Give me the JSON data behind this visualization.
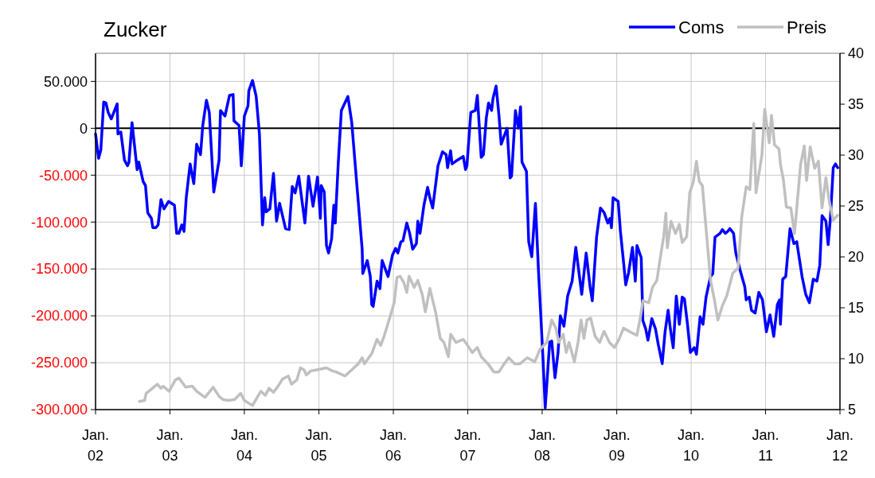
{
  "chart_data": {
    "type": "line",
    "title": "Zucker",
    "xlim": [
      "2002-01-01",
      "2012-01-01"
    ],
    "xticks": [
      {
        "value": "2002-01-01",
        "label": "Jan.\n02"
      },
      {
        "value": "2003-01-01",
        "label": "Jan.\n03"
      },
      {
        "value": "2004-01-01",
        "label": "Jan.\n04"
      },
      {
        "value": "2005-01-01",
        "label": "Jan.\n05"
      },
      {
        "value": "2006-01-01",
        "label": "Jan.\n06"
      },
      {
        "value": "2007-01-01",
        "label": "Jan.\n07"
      },
      {
        "value": "2008-01-01",
        "label": "Jan.\n08"
      },
      {
        "value": "2009-01-01",
        "label": "Jan.\n09"
      },
      {
        "value": "2010-01-01",
        "label": "Jan.\n10"
      },
      {
        "value": "2011-01-01",
        "label": "Jan.\n11"
      },
      {
        "value": "2012-01-01",
        "label": "Jan.\n12"
      }
    ],
    "ylim": [
      -300000,
      80000
    ],
    "yticks": [
      {
        "value": -300000,
        "label": "-300.000"
      },
      {
        "value": -250000,
        "label": "-250.000"
      },
      {
        "value": -200000,
        "label": "-200.000"
      },
      {
        "value": -150000,
        "label": "-150.000"
      },
      {
        "value": -100000,
        "label": "-100.000"
      },
      {
        "value": -50000,
        "label": "-50.000"
      },
      0,
      {
        "value": 50000,
        "label": "50.000"
      }
    ],
    "y2lim": [
      5,
      40
    ],
    "y2ticks": [
      5,
      10,
      15,
      20,
      25,
      30,
      35,
      40
    ],
    "grid": true,
    "legend": "top right",
    "ref_lines": [
      {
        "axis": "y",
        "value": 0,
        "color": "#000000"
      }
    ],
    "series": [
      {
        "name": "Coms",
        "color": "#0000ff",
        "x": [
          "2002-01-01",
          "2002-01-16",
          "2002-01-27",
          "2002-02-10",
          "2002-02-21",
          "2002-03-04",
          "2002-03-19",
          "2002-04-17",
          "2002-04-21",
          "2002-05-05",
          "2002-05-23",
          "2002-06-07",
          "2002-06-14",
          "2002-06-29",
          "2002-07-24",
          "2002-08-01",
          "2002-08-23",
          "2002-09-03",
          "2002-09-14",
          "2002-10-02",
          "2002-10-09",
          "2002-10-24",
          "2002-11-04",
          "2002-11-18",
          "2002-12-03",
          "2002-12-25",
          "2003-01-23",
          "2003-02-03",
          "2003-02-14",
          "2003-02-28",
          "2003-03-11",
          "2003-03-22",
          "2003-04-10",
          "2003-04-28",
          "2003-05-12",
          "2003-05-31",
          "2003-06-11",
          "2003-06-29",
          "2003-07-13",
          "2003-08-04",
          "2003-08-30",
          "2003-09-06",
          "2003-09-28",
          "2003-10-20",
          "2003-11-07",
          "2003-11-11",
          "2003-12-06",
          "2003-12-17",
          "2004-01-01",
          "2004-01-19",
          "2004-01-23",
          "2004-02-10",
          "2004-02-28",
          "2004-03-15",
          "2004-03-30",
          "2004-04-10",
          "2004-04-17",
          "2004-05-05",
          "2004-05-23",
          "2004-06-07",
          "2004-06-22",
          "2004-07-21",
          "2004-08-08",
          "2004-08-23",
          "2004-09-06",
          "2004-09-24",
          "2004-10-24",
          "2004-11-11",
          "2004-12-03",
          "2004-12-25",
          "2005-01-08",
          "2005-01-12",
          "2005-01-27",
          "2005-02-07",
          "2005-02-17",
          "2005-03-04",
          "2005-03-15",
          "2005-03-22",
          "2005-04-06",
          "2005-04-21",
          "2005-05-23",
          "2005-06-11",
          "2005-08-01",
          "2005-08-04",
          "2005-08-26",
          "2005-09-10",
          "2005-09-17",
          "2005-09-24",
          "2005-10-13",
          "2005-10-27",
          "2005-11-07",
          "2005-12-06",
          "2005-12-28",
          "2006-01-12",
          "2006-01-23",
          "2006-02-07",
          "2006-02-17",
          "2006-03-08",
          "2006-03-22",
          "2006-04-06",
          "2006-04-24",
          "2006-05-01",
          "2006-05-12",
          "2006-05-31",
          "2006-06-18",
          "2006-06-29",
          "2006-07-13",
          "2006-08-08",
          "2006-08-30",
          "2006-09-17",
          "2006-09-24",
          "2006-10-09",
          "2006-10-16",
          "2006-11-04",
          "2006-12-10",
          "2006-12-21",
          "2006-12-28",
          "2007-01-16",
          "2007-02-07",
          "2007-02-17",
          "2007-03-08",
          "2007-03-19",
          "2007-04-02",
          "2007-04-13",
          "2007-04-28",
          "2007-05-05",
          "2007-05-20",
          "2007-06-03",
          "2007-06-14",
          "2007-06-29",
          "2007-07-13",
          "2007-07-28",
          "2007-08-04",
          "2007-08-23",
          "2007-09-06",
          "2007-09-17",
          "2007-09-24",
          "2007-10-16",
          "2007-10-27",
          "2007-11-11",
          "2007-11-29",
          "2007-12-14",
          "2008-01-05",
          "2008-01-16",
          "2008-02-07",
          "2008-02-17",
          "2008-03-04",
          "2008-03-19",
          "2008-03-30",
          "2008-04-17",
          "2008-05-05",
          "2008-05-27",
          "2008-06-14",
          "2008-07-13",
          "2008-08-04",
          "2008-08-23",
          "2008-09-03",
          "2008-09-24",
          "2008-10-13",
          "2008-10-31",
          "2008-11-18",
          "2008-11-29",
          "2008-12-06",
          "2008-12-14",
          "2009-01-08",
          "2009-01-19",
          "2009-02-03",
          "2009-02-14",
          "2009-02-28",
          "2009-03-19",
          "2009-04-02",
          "2009-04-10",
          "2009-05-01",
          "2009-05-09",
          "2009-05-23",
          "2009-06-03",
          "2009-06-22",
          "2009-07-10",
          "2009-07-24",
          "2009-08-12",
          "2009-08-26",
          "2009-09-10",
          "2009-09-21",
          "2009-10-05",
          "2009-10-20",
          "2009-11-04",
          "2009-11-18",
          "2009-11-29",
          "2009-12-14",
          "2009-12-28",
          "2010-01-16",
          "2010-01-27",
          "2010-02-14",
          "2010-02-28",
          "2010-03-15",
          "2010-04-06",
          "2010-04-17",
          "2010-04-28",
          "2010-05-23",
          "2010-06-03",
          "2010-06-18",
          "2010-06-29",
          "2010-07-10",
          "2010-07-28",
          "2010-08-08",
          "2010-08-30",
          "2010-09-21",
          "2010-09-28",
          "2010-10-13",
          "2010-10-24",
          "2010-11-11",
          "2010-11-29",
          "2010-12-17",
          "2011-01-05",
          "2011-01-23",
          "2011-02-10",
          "2011-02-28",
          "2011-03-11",
          "2011-03-15",
          "2011-03-26",
          "2011-04-10",
          "2011-05-01",
          "2011-05-20",
          "2011-06-03",
          "2011-06-29",
          "2011-07-17",
          "2011-08-04",
          "2011-08-23",
          "2011-09-10",
          "2011-09-24",
          "2011-10-05",
          "2011-10-24",
          "2011-11-04",
          "2011-11-15",
          "2011-11-29",
          "2011-12-10",
          "2011-12-21"
        ],
        "values": [
          -6000,
          -32000,
          -23000,
          28000,
          27000,
          17000,
          10000,
          26000,
          -6000,
          -4000,
          -34000,
          -40000,
          -36000,
          6000,
          -44000,
          -36000,
          -57000,
          -61000,
          -90000,
          -96000,
          -106000,
          -106000,
          -103000,
          -76000,
          -86000,
          -78000,
          -82000,
          -112000,
          -112000,
          -103000,
          -110000,
          -74000,
          -38000,
          -59000,
          -17000,
          -28000,
          3000,
          30000,
          17000,
          -68000,
          -34000,
          19000,
          13000,
          35000,
          36000,
          8000,
          3000,
          -40000,
          13000,
          24000,
          40000,
          51000,
          34000,
          -6000,
          -103000,
          -74000,
          -89000,
          -86000,
          -48000,
          -99000,
          -80000,
          -107000,
          -108000,
          -62000,
          -69000,
          -51000,
          -101000,
          -51000,
          -83000,
          -52000,
          -96000,
          -61000,
          -68000,
          -125000,
          -133000,
          -118000,
          -82000,
          -101000,
          -36000,
          19000,
          34000,
          6000,
          -129000,
          -155000,
          -141000,
          -158000,
          -188000,
          -190000,
          -163000,
          -171000,
          -141000,
          -158000,
          -135000,
          -128000,
          -133000,
          -121000,
          -120000,
          -101000,
          -112000,
          -129000,
          -123000,
          -99000,
          -112000,
          -82000,
          -63000,
          -74000,
          -85000,
          -40000,
          -25000,
          -28000,
          -42000,
          -24000,
          -38000,
          -35000,
          -30000,
          -44000,
          -40000,
          17000,
          19000,
          35000,
          -31000,
          -28000,
          11000,
          27000,
          19000,
          32000,
          45000,
          14000,
          -17000,
          -8000,
          0,
          -53000,
          -51000,
          19000,
          0,
          23000,
          -36000,
          -46000,
          -121000,
          -137000,
          -80000,
          -152000,
          -245000,
          -298000,
          -228000,
          -227000,
          -266000,
          -239000,
          -200000,
          -211000,
          -179000,
          -163000,
          -127000,
          -177000,
          -133000,
          -169000,
          -184000,
          -116000,
          -85000,
          -90000,
          -101000,
          -96000,
          -106000,
          -74000,
          -78000,
          -110000,
          -142000,
          -167000,
          -154000,
          -127000,
          -163000,
          -125000,
          -138000,
          -205000,
          -214000,
          -226000,
          -203000,
          -214000,
          -231000,
          -251000,
          -217000,
          -194000,
          -214000,
          -234000,
          -179000,
          -209000,
          -180000,
          -182000,
          -209000,
          -239000,
          -234000,
          -241000,
          -201000,
          -209000,
          -180000,
          -158000,
          -155000,
          -116000,
          -112000,
          -108000,
          -112000,
          -110000,
          -107000,
          -112000,
          -133000,
          -152000,
          -169000,
          -183000,
          -180000,
          -194000,
          -197000,
          -175000,
          -183000,
          -217000,
          -199000,
          -222000,
          -188000,
          -183000,
          -209000,
          -161000,
          -158000,
          -107000,
          -123000,
          -121000,
          -158000,
          -177000,
          -186000,
          -161000,
          -163000,
          -146000,
          -93000,
          -99000,
          -124000,
          -96000,
          -42000,
          -38000,
          -42000
        ]
      },
      {
        "name": "Preis",
        "color": "#c0c0c0",
        "axis": "y2",
        "x": [
          "2002-08-04",
          "2002-08-30",
          "2002-09-06",
          "2002-10-02",
          "2002-10-13",
          "2002-10-31",
          "2002-11-18",
          "2002-11-29",
          "2002-12-28",
          "2003-01-27",
          "2003-02-14",
          "2003-03-19",
          "2003-04-21",
          "2003-05-12",
          "2003-06-22",
          "2003-08-01",
          "2003-08-30",
          "2003-09-17",
          "2003-10-16",
          "2003-11-15",
          "2003-12-14",
          "2004-01-01",
          "2004-02-10",
          "2004-03-04",
          "2004-03-22",
          "2004-04-13",
          "2004-05-01",
          "2004-05-23",
          "2004-06-11",
          "2004-07-06",
          "2004-08-04",
          "2004-08-19",
          "2004-09-14",
          "2004-10-02",
          "2004-10-20",
          "2004-10-31",
          "2004-11-22",
          "2004-12-21",
          "2005-02-07",
          "2005-03-08",
          "2005-03-26",
          "2005-04-17",
          "2005-05-09",
          "2005-06-11",
          "2005-07-13",
          "2005-08-01",
          "2005-08-12",
          "2005-09-17",
          "2005-10-13",
          "2005-10-31",
          "2005-11-18",
          "2005-12-17",
          "2006-01-05",
          "2006-01-19",
          "2006-02-03",
          "2006-02-21",
          "2006-03-08",
          "2006-03-19",
          "2006-04-13",
          "2006-05-01",
          "2006-05-23",
          "2006-06-07",
          "2006-06-29",
          "2006-07-28",
          "2006-08-19",
          "2006-09-06",
          "2006-09-28",
          "2006-10-09",
          "2006-11-04",
          "2006-12-10",
          "2006-12-28",
          "2007-01-23",
          "2007-02-17",
          "2007-03-08",
          "2007-04-10",
          "2007-05-09",
          "2007-06-03",
          "2007-06-29",
          "2007-07-21",
          "2007-08-19",
          "2007-09-14",
          "2007-10-20",
          "2007-11-26",
          "2007-12-21",
          "2008-01-23",
          "2008-02-17",
          "2008-03-08",
          "2008-03-22",
          "2008-04-13",
          "2008-04-28",
          "2008-05-12",
          "2008-06-07",
          "2008-06-25",
          "2008-07-10",
          "2008-07-24",
          "2008-08-08",
          "2008-08-26",
          "2008-09-17",
          "2008-10-09",
          "2008-10-31",
          "2008-11-26",
          "2008-12-21",
          "2009-01-12",
          "2009-02-03",
          "2009-03-11",
          "2009-04-10",
          "2009-04-28",
          "2009-05-09",
          "2009-06-07",
          "2009-06-25",
          "2009-07-17",
          "2009-07-28",
          "2009-08-19",
          "2009-08-30",
          "2009-09-06",
          "2009-09-24",
          "2009-10-16",
          "2009-11-04",
          "2009-11-18",
          "2009-12-10",
          "2009-12-25",
          "2010-01-12",
          "2010-01-27",
          "2010-02-10",
          "2010-02-25",
          "2010-03-15",
          "2010-04-06",
          "2010-04-24",
          "2010-05-12",
          "2010-06-03",
          "2010-06-25",
          "2010-07-24",
          "2010-08-19",
          "2010-09-06",
          "2010-09-28",
          "2010-10-16",
          "2010-11-04",
          "2010-11-15",
          "2010-12-14",
          "2010-12-28",
          "2011-01-19",
          "2011-01-30",
          "2011-02-14",
          "2011-03-08",
          "2011-03-15",
          "2011-03-30",
          "2011-04-13",
          "2011-05-05",
          "2011-05-23",
          "2011-06-22",
          "2011-07-10",
          "2011-07-21",
          "2011-08-08",
          "2011-08-30",
          "2011-09-17",
          "2011-10-05",
          "2011-10-24",
          "2011-11-11",
          "2011-11-29",
          "2011-12-21"
        ],
        "values": [
          5.8,
          5.9,
          6.6,
          7.0,
          7.2,
          7.5,
          7.1,
          7.3,
          6.8,
          7.9,
          8.1,
          7.2,
          7.3,
          6.8,
          6.2,
          7.2,
          6.3,
          6.0,
          5.9,
          6.0,
          6.6,
          5.9,
          5.4,
          6.2,
          6.8,
          6.4,
          7.1,
          6.7,
          7.2,
          8.0,
          8.3,
          7.5,
          7.9,
          9.1,
          8.9,
          8.4,
          8.8,
          8.9,
          9.1,
          8.8,
          8.7,
          8.5,
          8.3,
          8.9,
          9.5,
          10.1,
          9.5,
          10.5,
          11.9,
          11.3,
          12.3,
          14.2,
          15.5,
          18.0,
          18.1,
          17.5,
          16.5,
          18.1,
          17.0,
          17.7,
          16.3,
          14.6,
          16.9,
          14.5,
          12.0,
          11.6,
          10.2,
          12.4,
          11.6,
          11.9,
          11.4,
          10.6,
          11.1,
          10.2,
          9.5,
          8.7,
          8.7,
          9.5,
          10.1,
          9.5,
          9.5,
          10.1,
          9.7,
          10.9,
          11.6,
          13.8,
          13.0,
          11.6,
          12.4,
          10.6,
          11.6,
          9.7,
          11.6,
          13.8,
          12.0,
          13.8,
          14.0,
          12.2,
          11.6,
          12.7,
          11.6,
          11.1,
          11.9,
          13.0,
          12.6,
          12.3,
          14.2,
          15.7,
          15.5,
          17.0,
          17.7,
          19.2,
          22.0,
          24.3,
          20.9,
          23.5,
          22.3,
          23.2,
          21.4,
          22.0,
          26.3,
          27.4,
          29.4,
          27.4,
          27.0,
          22.8,
          17.7,
          15.9,
          13.8,
          15.2,
          16.2,
          18.4,
          18.9,
          23.9,
          26.9,
          26.6,
          33.1,
          26.3,
          30.0,
          34.5,
          31.2,
          33.9,
          31.0,
          30.6,
          29.1,
          27.5,
          24.9,
          24.8,
          22.3,
          29.1,
          30.9,
          27.5,
          30.8,
          28.7,
          29.4,
          24.8,
          27.8,
          25.3,
          23.6,
          24.1
        ]
      }
    ]
  }
}
